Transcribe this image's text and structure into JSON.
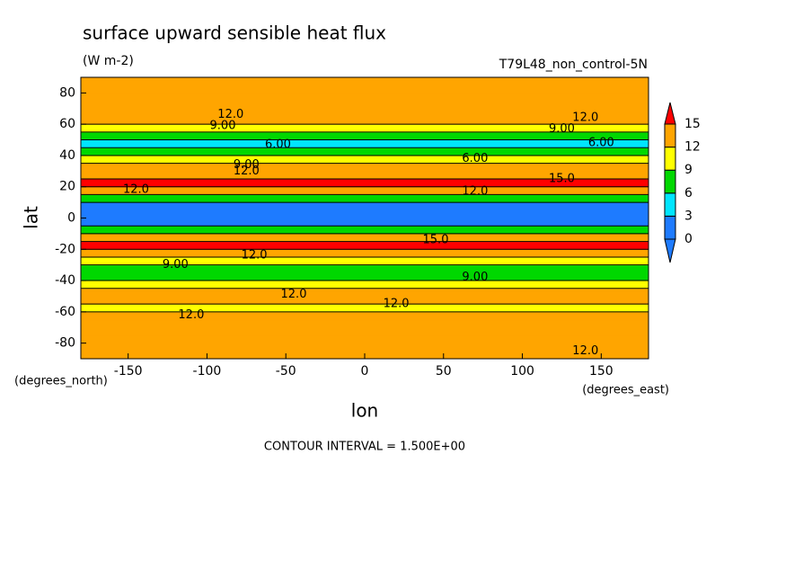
{
  "chart_data": {
    "type": "contour",
    "title": "surface upward sensible heat flux",
    "subtitle": "(W m-2)",
    "dataset": "T79L48_non_control-5N",
    "xlabel": "lon",
    "ylabel": "lat",
    "x_units": "(degrees_east)",
    "y_units": "(degrees_north)",
    "note": "CONTOUR INTERVAL = 1.500E+00",
    "xlim": [
      -180,
      180
    ],
    "xticks": [
      -150,
      -100,
      -50,
      0,
      50,
      100,
      150
    ],
    "ylim": [
      -90,
      90
    ],
    "yticks": [
      -80,
      -60,
      -40,
      -20,
      0,
      20,
      40,
      60,
      80
    ],
    "lat": [
      -87.5,
      -82.5,
      -77.5,
      -72.5,
      -67.5,
      -62.5,
      -57.5,
      -52.5,
      -47.5,
      -42.5,
      -37.5,
      -32.5,
      -27.5,
      -22.5,
      -17.5,
      -12.5,
      -7.5,
      -2.5,
      2.5,
      7.5,
      12.5,
      17.5,
      22.5,
      27.5,
      32.5,
      37.5,
      42.5,
      47.5,
      52.5,
      57.5,
      62.5,
      67.5,
      72.5,
      77.5,
      82.5,
      87.5
    ],
    "values": [
      13,
      13,
      13,
      13,
      13,
      12.5,
      11,
      12,
      12,
      10,
      8,
      7.5,
      9,
      12,
      15.5,
      13,
      8,
      2,
      1.5,
      2,
      7,
      13,
      15.5,
      13.5,
      12,
      10,
      7,
      5,
      7,
      10,
      12.5,
      13,
      13,
      13,
      13,
      13
    ],
    "colorbar_levels": [
      0,
      3,
      6,
      9,
      12,
      15
    ],
    "colors": [
      "#1e7bff",
      "#1e7bff",
      "#00e5ff",
      "#00d800",
      "#ffff00",
      "#ffa500",
      "#ff0000"
    ],
    "contour_labels": [
      {
        "text": "12.0",
        "lon": -85,
        "lat": 66
      },
      {
        "text": "9.00",
        "lon": -90,
        "lat": 59
      },
      {
        "text": "6.00",
        "lon": -55,
        "lat": 47
      },
      {
        "text": "9.00",
        "lon": -75,
        "lat": 34
      },
      {
        "text": "12.0",
        "lon": -75,
        "lat": 30
      },
      {
        "text": "12.0",
        "lon": -145,
        "lat": 18
      },
      {
        "text": "12.0",
        "lon": 70,
        "lat": 17
      },
      {
        "text": "15.0",
        "lon": 125,
        "lat": 25
      },
      {
        "text": "6.00",
        "lon": 70,
        "lat": 38
      },
      {
        "text": "6.00",
        "lon": 150,
        "lat": 48
      },
      {
        "text": "9.00",
        "lon": 125,
        "lat": 57
      },
      {
        "text": "12.0",
        "lon": 140,
        "lat": 64
      },
      {
        "text": "15.0",
        "lon": 45,
        "lat": -14
      },
      {
        "text": "12.0",
        "lon": -70,
        "lat": -24
      },
      {
        "text": "9.00",
        "lon": -120,
        "lat": -30
      },
      {
        "text": "9.00",
        "lon": 70,
        "lat": -38
      },
      {
        "text": "12.0",
        "lon": -45,
        "lat": -49
      },
      {
        "text": "12.0",
        "lon": 20,
        "lat": -55
      },
      {
        "text": "12.0",
        "lon": -110,
        "lat": -62
      },
      {
        "text": "12.0",
        "lon": 140,
        "lat": -85
      }
    ]
  }
}
